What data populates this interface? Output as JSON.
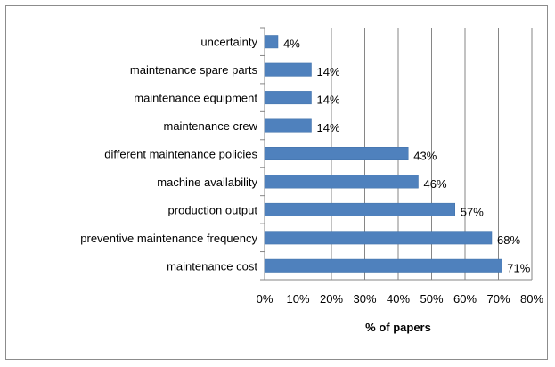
{
  "chart_data": {
    "type": "bar",
    "orientation": "horizontal",
    "categories": [
      "uncertainty",
      "maintenance spare parts",
      "maintenance equipment",
      "maintenance crew",
      "different maintenance policies",
      "machine availability",
      "production output",
      "preventive maintenance frequency",
      "maintenance cost"
    ],
    "values": [
      4,
      14,
      14,
      14,
      43,
      46,
      57,
      68,
      71
    ],
    "data_labels": [
      "4%",
      "14%",
      "14%",
      "14%",
      "43%",
      "46%",
      "57%",
      "68%",
      "71%"
    ],
    "xlabel": "% of papers",
    "ylabel": "",
    "xlim": [
      0,
      80
    ],
    "xticks": [
      "0%",
      "10%",
      "20%",
      "30%",
      "40%",
      "50%",
      "60%",
      "70%",
      "80%"
    ],
    "grid": "vertical",
    "legend": "none",
    "bar_color": "#4f81bd"
  }
}
